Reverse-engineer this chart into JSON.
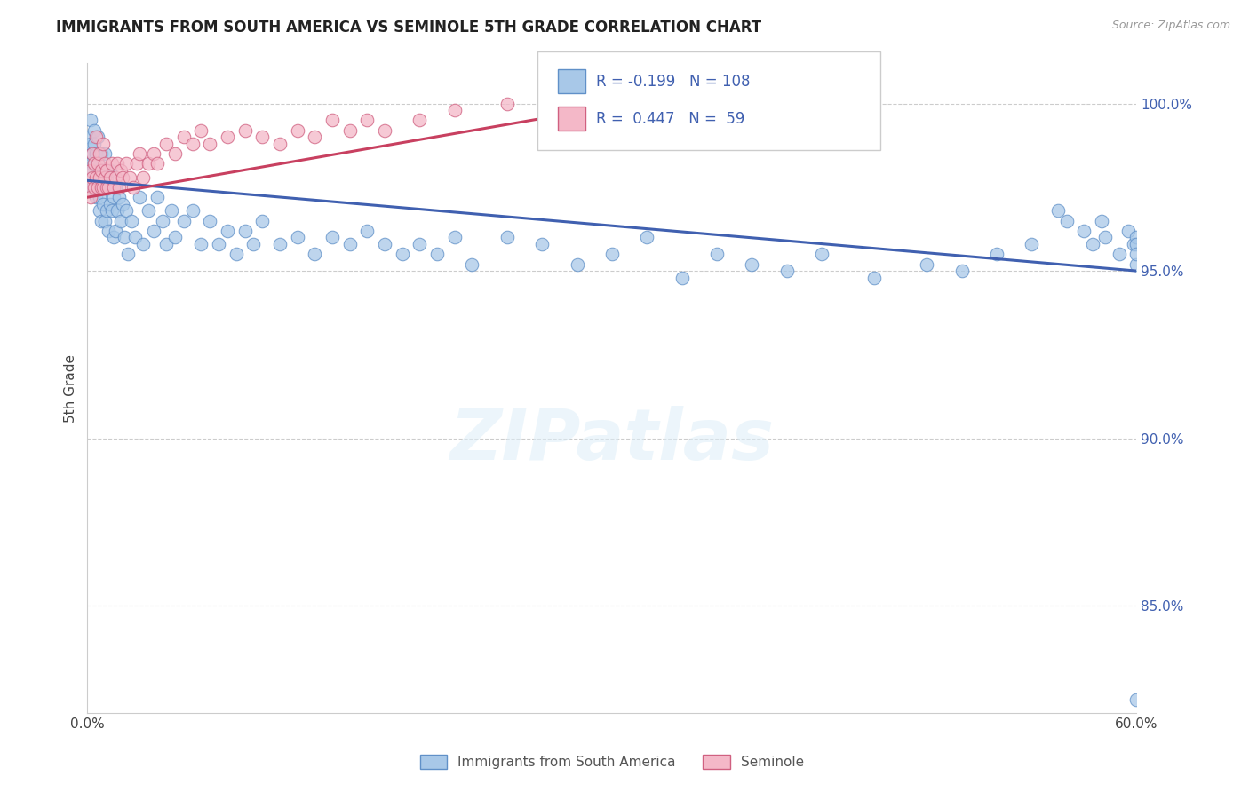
{
  "title": "IMMIGRANTS FROM SOUTH AMERICA VS SEMINOLE 5TH GRADE CORRELATION CHART",
  "source": "Source: ZipAtlas.com",
  "ylabel": "5th Grade",
  "xlim": [
    0.0,
    0.6
  ],
  "ylim": [
    0.818,
    1.012
  ],
  "yticks": [
    1.0,
    0.95,
    0.9,
    0.85
  ],
  "ytick_labels": [
    "100.0%",
    "95.0%",
    "90.0%",
    "85.0%"
  ],
  "xticks": [
    0.0,
    0.1,
    0.2,
    0.3,
    0.4,
    0.5,
    0.6
  ],
  "xtick_labels": [
    "0.0%",
    "",
    "",
    "",
    "",
    "",
    "60.0%"
  ],
  "blue_R": -0.199,
  "blue_N": 108,
  "pink_R": 0.447,
  "pink_N": 59,
  "blue_color": "#a8c8e8",
  "pink_color": "#f4b8c8",
  "blue_edge_color": "#6090c8",
  "pink_edge_color": "#d06080",
  "blue_line_color": "#4060b0",
  "pink_line_color": "#c84060",
  "legend_label_blue": "Immigrants from South America",
  "legend_label_pink": "Seminole",
  "watermark": "ZIPatlas",
  "blue_scatter_x": [
    0.001,
    0.001,
    0.002,
    0.002,
    0.002,
    0.003,
    0.003,
    0.003,
    0.004,
    0.004,
    0.004,
    0.005,
    0.005,
    0.005,
    0.006,
    0.006,
    0.006,
    0.007,
    0.007,
    0.007,
    0.008,
    0.008,
    0.008,
    0.009,
    0.009,
    0.01,
    0.01,
    0.01,
    0.011,
    0.011,
    0.012,
    0.012,
    0.013,
    0.013,
    0.014,
    0.015,
    0.015,
    0.016,
    0.016,
    0.017,
    0.018,
    0.019,
    0.02,
    0.021,
    0.022,
    0.023,
    0.025,
    0.027,
    0.03,
    0.032,
    0.035,
    0.038,
    0.04,
    0.043,
    0.045,
    0.048,
    0.05,
    0.055,
    0.06,
    0.065,
    0.07,
    0.075,
    0.08,
    0.085,
    0.09,
    0.095,
    0.1,
    0.11,
    0.12,
    0.13,
    0.14,
    0.15,
    0.16,
    0.17,
    0.18,
    0.19,
    0.2,
    0.21,
    0.22,
    0.24,
    0.26,
    0.28,
    0.3,
    0.32,
    0.34,
    0.36,
    0.38,
    0.4,
    0.42,
    0.45,
    0.48,
    0.5,
    0.52,
    0.54,
    0.555,
    0.56,
    0.57,
    0.575,
    0.58,
    0.582,
    0.59,
    0.595,
    0.598,
    0.6,
    0.6,
    0.6,
    0.6,
    0.6
  ],
  "blue_scatter_y": [
    0.99,
    0.985,
    0.988,
    0.982,
    0.995,
    0.985,
    0.98,
    0.975,
    0.988,
    0.982,
    0.992,
    0.985,
    0.978,
    0.972,
    0.982,
    0.975,
    0.99,
    0.98,
    0.972,
    0.968,
    0.985,
    0.975,
    0.965,
    0.98,
    0.97,
    0.985,
    0.975,
    0.965,
    0.978,
    0.968,
    0.975,
    0.962,
    0.98,
    0.97,
    0.968,
    0.972,
    0.96,
    0.975,
    0.962,
    0.968,
    0.972,
    0.965,
    0.97,
    0.96,
    0.968,
    0.955,
    0.965,
    0.96,
    0.972,
    0.958,
    0.968,
    0.962,
    0.972,
    0.965,
    0.958,
    0.968,
    0.96,
    0.965,
    0.968,
    0.958,
    0.965,
    0.958,
    0.962,
    0.955,
    0.962,
    0.958,
    0.965,
    0.958,
    0.96,
    0.955,
    0.96,
    0.958,
    0.962,
    0.958,
    0.955,
    0.958,
    0.955,
    0.96,
    0.952,
    0.96,
    0.958,
    0.952,
    0.955,
    0.96,
    0.948,
    0.955,
    0.952,
    0.95,
    0.955,
    0.948,
    0.952,
    0.95,
    0.955,
    0.958,
    0.968,
    0.965,
    0.962,
    0.958,
    0.965,
    0.96,
    0.955,
    0.962,
    0.958,
    0.96,
    0.958,
    0.952,
    0.955,
    0.822
  ],
  "pink_scatter_x": [
    0.001,
    0.002,
    0.002,
    0.003,
    0.003,
    0.004,
    0.004,
    0.005,
    0.005,
    0.006,
    0.006,
    0.007,
    0.007,
    0.008,
    0.008,
    0.009,
    0.009,
    0.01,
    0.01,
    0.011,
    0.011,
    0.012,
    0.013,
    0.014,
    0.015,
    0.016,
    0.017,
    0.018,
    0.019,
    0.02,
    0.022,
    0.024,
    0.026,
    0.028,
    0.03,
    0.032,
    0.035,
    0.038,
    0.04,
    0.045,
    0.05,
    0.055,
    0.06,
    0.065,
    0.07,
    0.08,
    0.09,
    0.1,
    0.11,
    0.12,
    0.13,
    0.14,
    0.15,
    0.16,
    0.17,
    0.19,
    0.21,
    0.24,
    0.32
  ],
  "pink_scatter_y": [
    0.975,
    0.98,
    0.972,
    0.978,
    0.985,
    0.975,
    0.982,
    0.978,
    0.99,
    0.975,
    0.982,
    0.978,
    0.985,
    0.975,
    0.98,
    0.975,
    0.988,
    0.978,
    0.982,
    0.975,
    0.98,
    0.975,
    0.978,
    0.982,
    0.975,
    0.978,
    0.982,
    0.975,
    0.98,
    0.978,
    0.982,
    0.978,
    0.975,
    0.982,
    0.985,
    0.978,
    0.982,
    0.985,
    0.982,
    0.988,
    0.985,
    0.99,
    0.988,
    0.992,
    0.988,
    0.99,
    0.992,
    0.99,
    0.988,
    0.992,
    0.99,
    0.995,
    0.992,
    0.995,
    0.992,
    0.995,
    0.998,
    1.0,
    1.0
  ],
  "blue_trend_x": [
    0.0,
    0.6
  ],
  "blue_trend_y": [
    0.977,
    0.95
  ],
  "pink_trend_x": [
    0.0,
    0.32
  ],
  "pink_trend_y": [
    0.972,
    1.001
  ]
}
